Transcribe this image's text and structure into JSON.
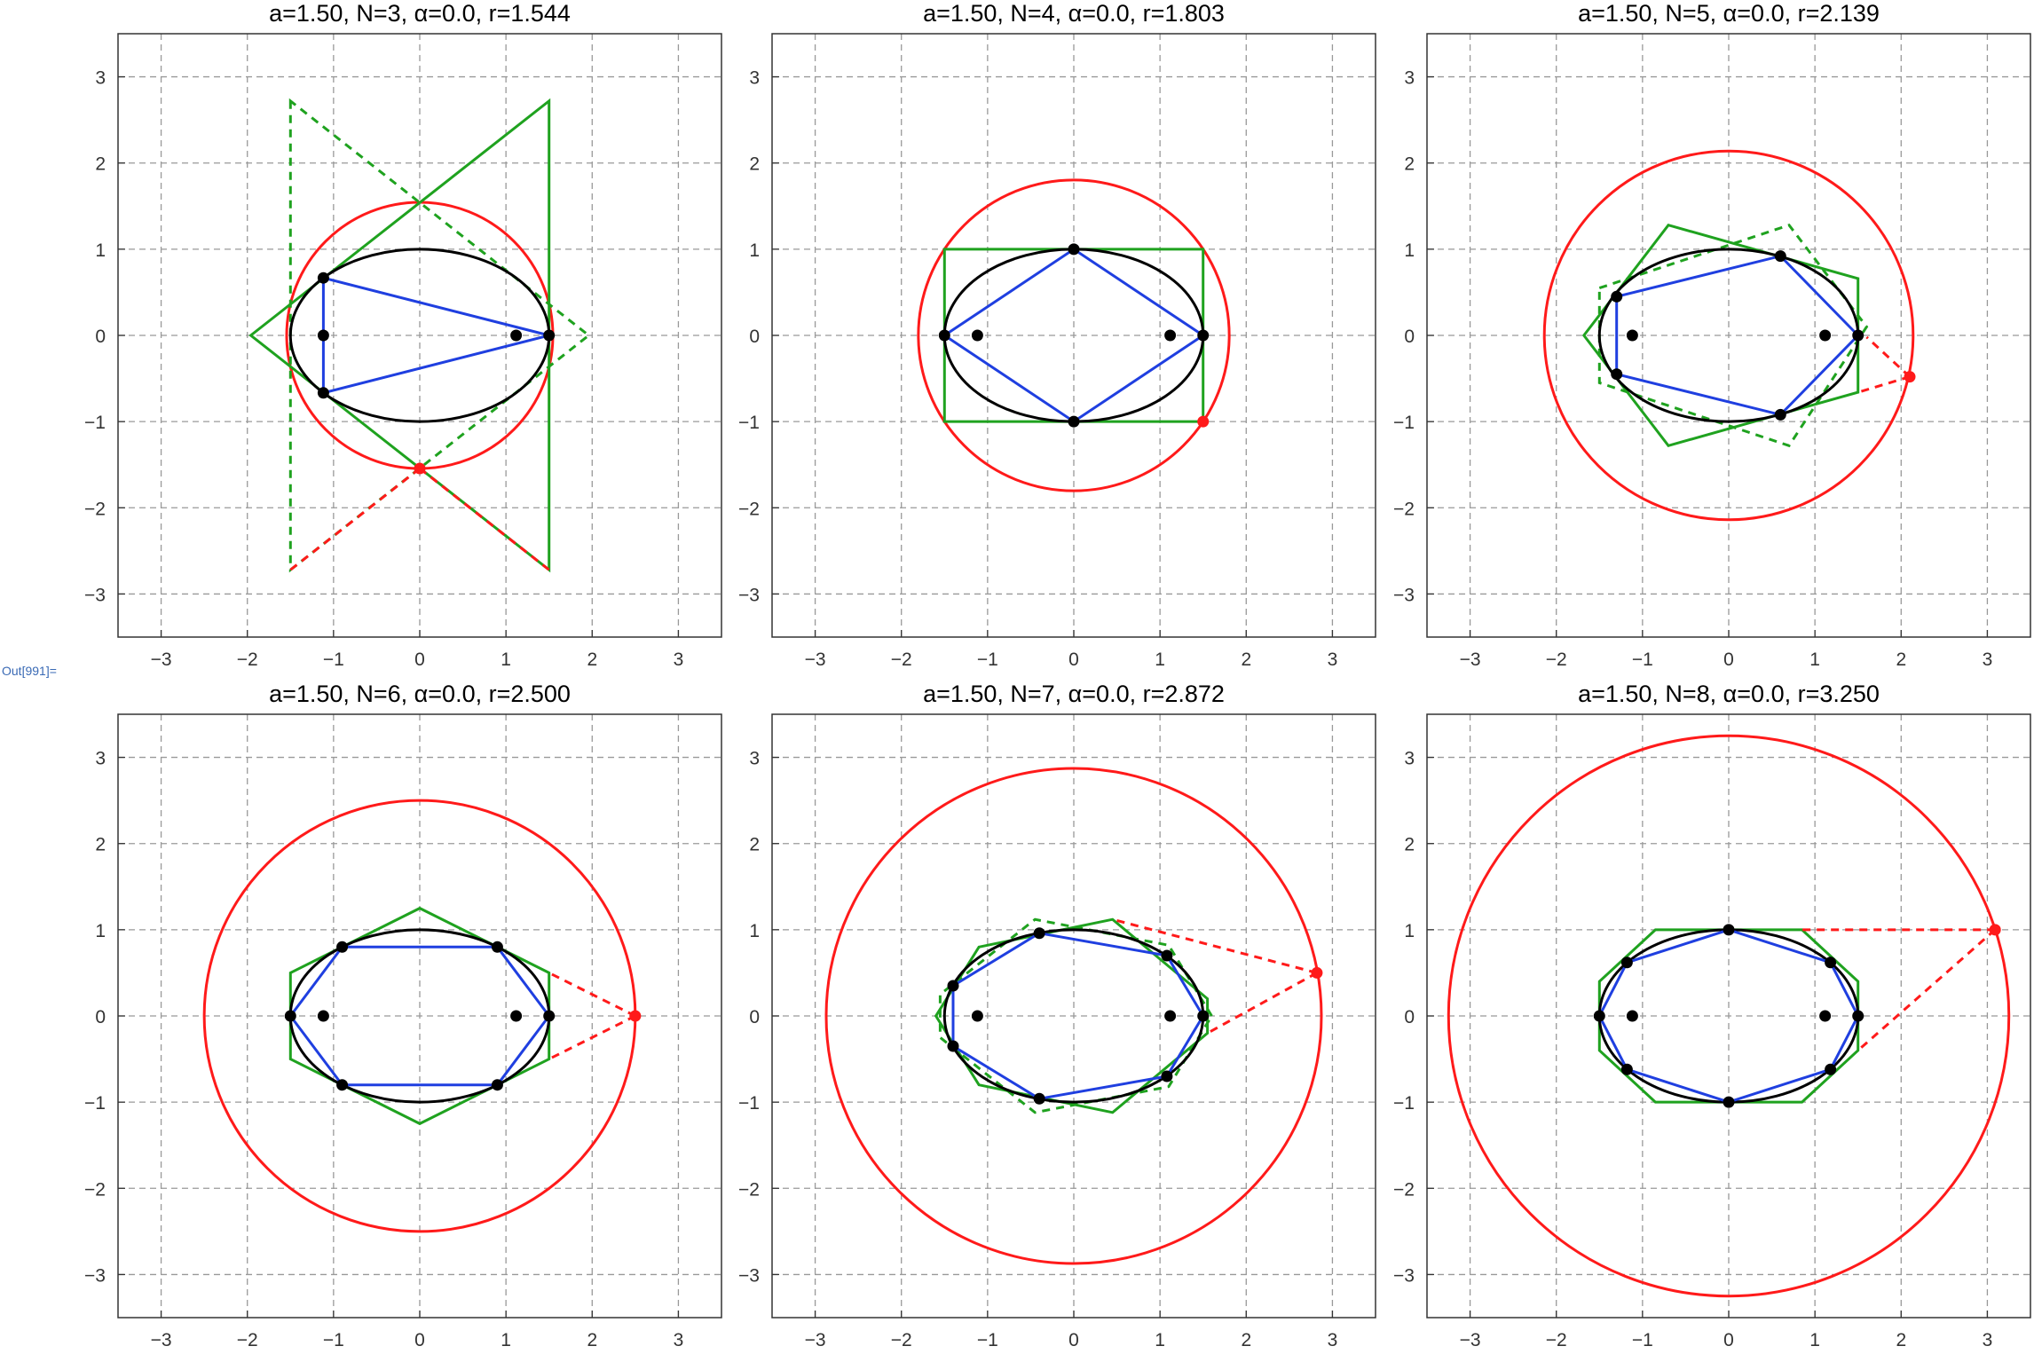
{
  "output_label": "Out[991]=",
  "colors": {
    "ellipse": "#000000",
    "inscribed": "#1f3fe0",
    "circumscribed": "#1fa21f",
    "circle": "#ff1a1a",
    "grid": "#999999"
  },
  "chart_data": [
    {
      "type": "scatter",
      "title": "a=1.50, N=3, α=0.0, r=1.544",
      "a": 1.5,
      "N": 3,
      "alpha": 0.0,
      "r": 1.544,
      "xlim": [
        -3.5,
        3.5
      ],
      "ylim": [
        -3.5,
        3.5
      ],
      "ticks": [
        -3,
        -2,
        -1,
        0,
        1,
        2,
        3
      ],
      "grid": true,
      "ellipse": {
        "rx": 1.5,
        "ry": 1
      },
      "foci": [
        [
          -1.118,
          0
        ],
        [
          1.118,
          0
        ]
      ],
      "inscribed": [
        [
          1.5,
          0
        ],
        [
          -1.118,
          0.667
        ],
        [
          -1.118,
          -0.667
        ]
      ],
      "circumscribed_solid": [
        [
          1.5,
          2.72
        ],
        [
          1.5,
          -2.72
        ],
        [
          -1.96,
          0
        ]
      ],
      "circumscribed_dashed": [
        [
          -1.5,
          2.72
        ],
        [
          -1.5,
          -2.72
        ],
        [
          1.96,
          0
        ]
      ],
      "red_point": [
        0,
        -1.544
      ],
      "red_lines": [
        [
          [
            0,
            -1.544
          ],
          [
            -1.5,
            -2.72
          ]
        ],
        [
          [
            0,
            -1.544
          ],
          [
            1.5,
            -2.72
          ]
        ]
      ]
    },
    {
      "type": "scatter",
      "title": "a=1.50, N=4, α=0.0, r=1.803",
      "a": 1.5,
      "N": 4,
      "alpha": 0.0,
      "r": 1.803,
      "xlim": [
        -3.5,
        3.5
      ],
      "ylim": [
        -3.5,
        3.5
      ],
      "ticks": [
        -3,
        -2,
        -1,
        0,
        1,
        2,
        3
      ],
      "grid": true,
      "ellipse": {
        "rx": 1.5,
        "ry": 1
      },
      "foci": [
        [
          -1.118,
          0
        ],
        [
          1.118,
          0
        ]
      ],
      "inscribed": [
        [
          1.5,
          0
        ],
        [
          0,
          1
        ],
        [
          -1.5,
          0
        ],
        [
          0,
          -1
        ]
      ],
      "circumscribed_solid": [
        [
          1.5,
          1
        ],
        [
          -1.5,
          1
        ],
        [
          -1.5,
          -1
        ],
        [
          1.5,
          -1
        ]
      ],
      "circumscribed_dashed": [],
      "red_point": [
        1.5,
        -1
      ],
      "red_lines": []
    },
    {
      "type": "scatter",
      "title": "a=1.50, N=5, α=0.0, r=2.139",
      "a": 1.5,
      "N": 5,
      "alpha": 0.0,
      "r": 2.139,
      "xlim": [
        -3.5,
        3.5
      ],
      "ylim": [
        -3.5,
        3.5
      ],
      "ticks": [
        -3,
        -2,
        -1,
        0,
        1,
        2,
        3
      ],
      "grid": true,
      "ellipse": {
        "rx": 1.5,
        "ry": 1
      },
      "foci": [
        [
          -1.118,
          0
        ],
        [
          1.118,
          0
        ]
      ],
      "inscribed": [
        [
          1.5,
          0
        ],
        [
          0.6,
          0.92
        ],
        [
          -1.3,
          0.45
        ],
        [
          -1.3,
          -0.45
        ],
        [
          0.6,
          -0.92
        ]
      ],
      "circumscribed_solid": [
        [
          1.5,
          0.66
        ],
        [
          -0.7,
          1.28
        ],
        [
          -1.68,
          0
        ],
        [
          -0.7,
          -1.28
        ],
        [
          1.5,
          -0.66
        ]
      ],
      "circumscribed_dashed": [
        [
          -1.5,
          0.55
        ],
        [
          0.7,
          1.28
        ],
        [
          1.6,
          0.1
        ],
        [
          0.7,
          -1.28
        ],
        [
          -1.5,
          -0.55
        ]
      ],
      "red_point": [
        2.1,
        -0.48
      ],
      "red_lines": [
        [
          [
            2.1,
            -0.48
          ],
          [
            1.6,
            -0.02
          ]
        ],
        [
          [
            2.1,
            -0.48
          ],
          [
            1.5,
            -0.66
          ]
        ]
      ]
    },
    {
      "type": "scatter",
      "title": "a=1.50, N=6, α=0.0, r=2.500",
      "a": 1.5,
      "N": 6,
      "alpha": 0.0,
      "r": 2.5,
      "xlim": [
        -3.5,
        3.5
      ],
      "ylim": [
        -3.5,
        3.5
      ],
      "ticks": [
        -3,
        -2,
        -1,
        0,
        1,
        2,
        3
      ],
      "grid": true,
      "ellipse": {
        "rx": 1.5,
        "ry": 1
      },
      "foci": [
        [
          -1.118,
          0
        ],
        [
          1.118,
          0
        ]
      ],
      "inscribed": [
        [
          1.5,
          0
        ],
        [
          0.9,
          0.8
        ],
        [
          -0.9,
          0.8
        ],
        [
          -1.5,
          0
        ],
        [
          -0.9,
          -0.8
        ],
        [
          0.9,
          -0.8
        ]
      ],
      "circumscribed_solid": [
        [
          1.5,
          0.5
        ],
        [
          0,
          1.25
        ],
        [
          -1.5,
          0.5
        ],
        [
          -1.5,
          -0.5
        ],
        [
          0,
          -1.25
        ],
        [
          1.5,
          -0.5
        ]
      ],
      "circumscribed_dashed": [],
      "red_point": [
        2.5,
        0
      ],
      "red_lines": [
        [
          [
            2.5,
            0
          ],
          [
            1.5,
            0.5
          ]
        ],
        [
          [
            2.5,
            0
          ],
          [
            1.5,
            -0.5
          ]
        ]
      ]
    },
    {
      "type": "scatter",
      "title": "a=1.50, N=7, α=0.0, r=2.872",
      "a": 1.5,
      "N": 7,
      "alpha": 0.0,
      "r": 2.872,
      "xlim": [
        -3.5,
        3.5
      ],
      "ylim": [
        -3.5,
        3.5
      ],
      "ticks": [
        -3,
        -2,
        -1,
        0,
        1,
        2,
        3
      ],
      "grid": true,
      "ellipse": {
        "rx": 1.5,
        "ry": 1
      },
      "foci": [
        [
          -1.118,
          0
        ],
        [
          1.118,
          0
        ]
      ],
      "inscribed": [
        [
          1.5,
          0
        ],
        [
          1.08,
          0.7
        ],
        [
          -0.4,
          0.96
        ],
        [
          -1.4,
          0.35
        ],
        [
          -1.4,
          -0.35
        ],
        [
          -0.4,
          -0.96
        ],
        [
          1.08,
          -0.7
        ]
      ],
      "circumscribed_solid": [
        [
          1.55,
          0.2
        ],
        [
          0.45,
          1.12
        ],
        [
          -1.1,
          0.8
        ],
        [
          -1.6,
          0
        ],
        [
          -1.1,
          -0.8
        ],
        [
          0.45,
          -1.12
        ],
        [
          1.55,
          -0.2
        ]
      ],
      "circumscribed_dashed": [
        [
          1.6,
          0
        ],
        [
          1.1,
          0.82
        ],
        [
          -0.45,
          1.12
        ],
        [
          -1.55,
          0.25
        ],
        [
          -1.55,
          -0.25
        ],
        [
          -0.45,
          -1.12
        ],
        [
          1.1,
          -0.82
        ]
      ],
      "red_point": [
        2.82,
        0.5
      ],
      "red_lines": [
        [
          [
            2.82,
            0.5
          ],
          [
            0.45,
            1.12
          ]
        ],
        [
          [
            2.82,
            0.5
          ],
          [
            1.55,
            -0.2
          ]
        ]
      ]
    },
    {
      "type": "scatter",
      "title": "a=1.50, N=8, α=0.0, r=3.250",
      "a": 1.5,
      "N": 8,
      "alpha": 0.0,
      "r": 3.25,
      "xlim": [
        -3.5,
        3.5
      ],
      "ylim": [
        -3.5,
        3.5
      ],
      "ticks": [
        -3,
        -2,
        -1,
        0,
        1,
        2,
        3
      ],
      "grid": true,
      "ellipse": {
        "rx": 1.5,
        "ry": 1
      },
      "foci": [
        [
          -1.118,
          0
        ],
        [
          1.118,
          0
        ]
      ],
      "inscribed": [
        [
          1.5,
          0
        ],
        [
          1.18,
          0.62
        ],
        [
          0,
          1
        ],
        [
          -1.18,
          0.62
        ],
        [
          -1.5,
          0
        ],
        [
          -1.18,
          -0.62
        ],
        [
          0,
          -1
        ],
        [
          1.18,
          -0.62
        ]
      ],
      "circumscribed_solid": [
        [
          1.5,
          0.4
        ],
        [
          0.85,
          1
        ],
        [
          -0.85,
          1
        ],
        [
          -1.5,
          0.4
        ],
        [
          -1.5,
          -0.4
        ],
        [
          -0.85,
          -1
        ],
        [
          0.85,
          -1
        ],
        [
          1.5,
          -0.4
        ]
      ],
      "circumscribed_dashed": [],
      "red_point": [
        3.09,
        1
      ],
      "red_lines": [
        [
          [
            3.09,
            1
          ],
          [
            0.85,
            1
          ]
        ],
        [
          [
            3.09,
            1
          ],
          [
            1.5,
            -0.4
          ]
        ]
      ]
    }
  ]
}
